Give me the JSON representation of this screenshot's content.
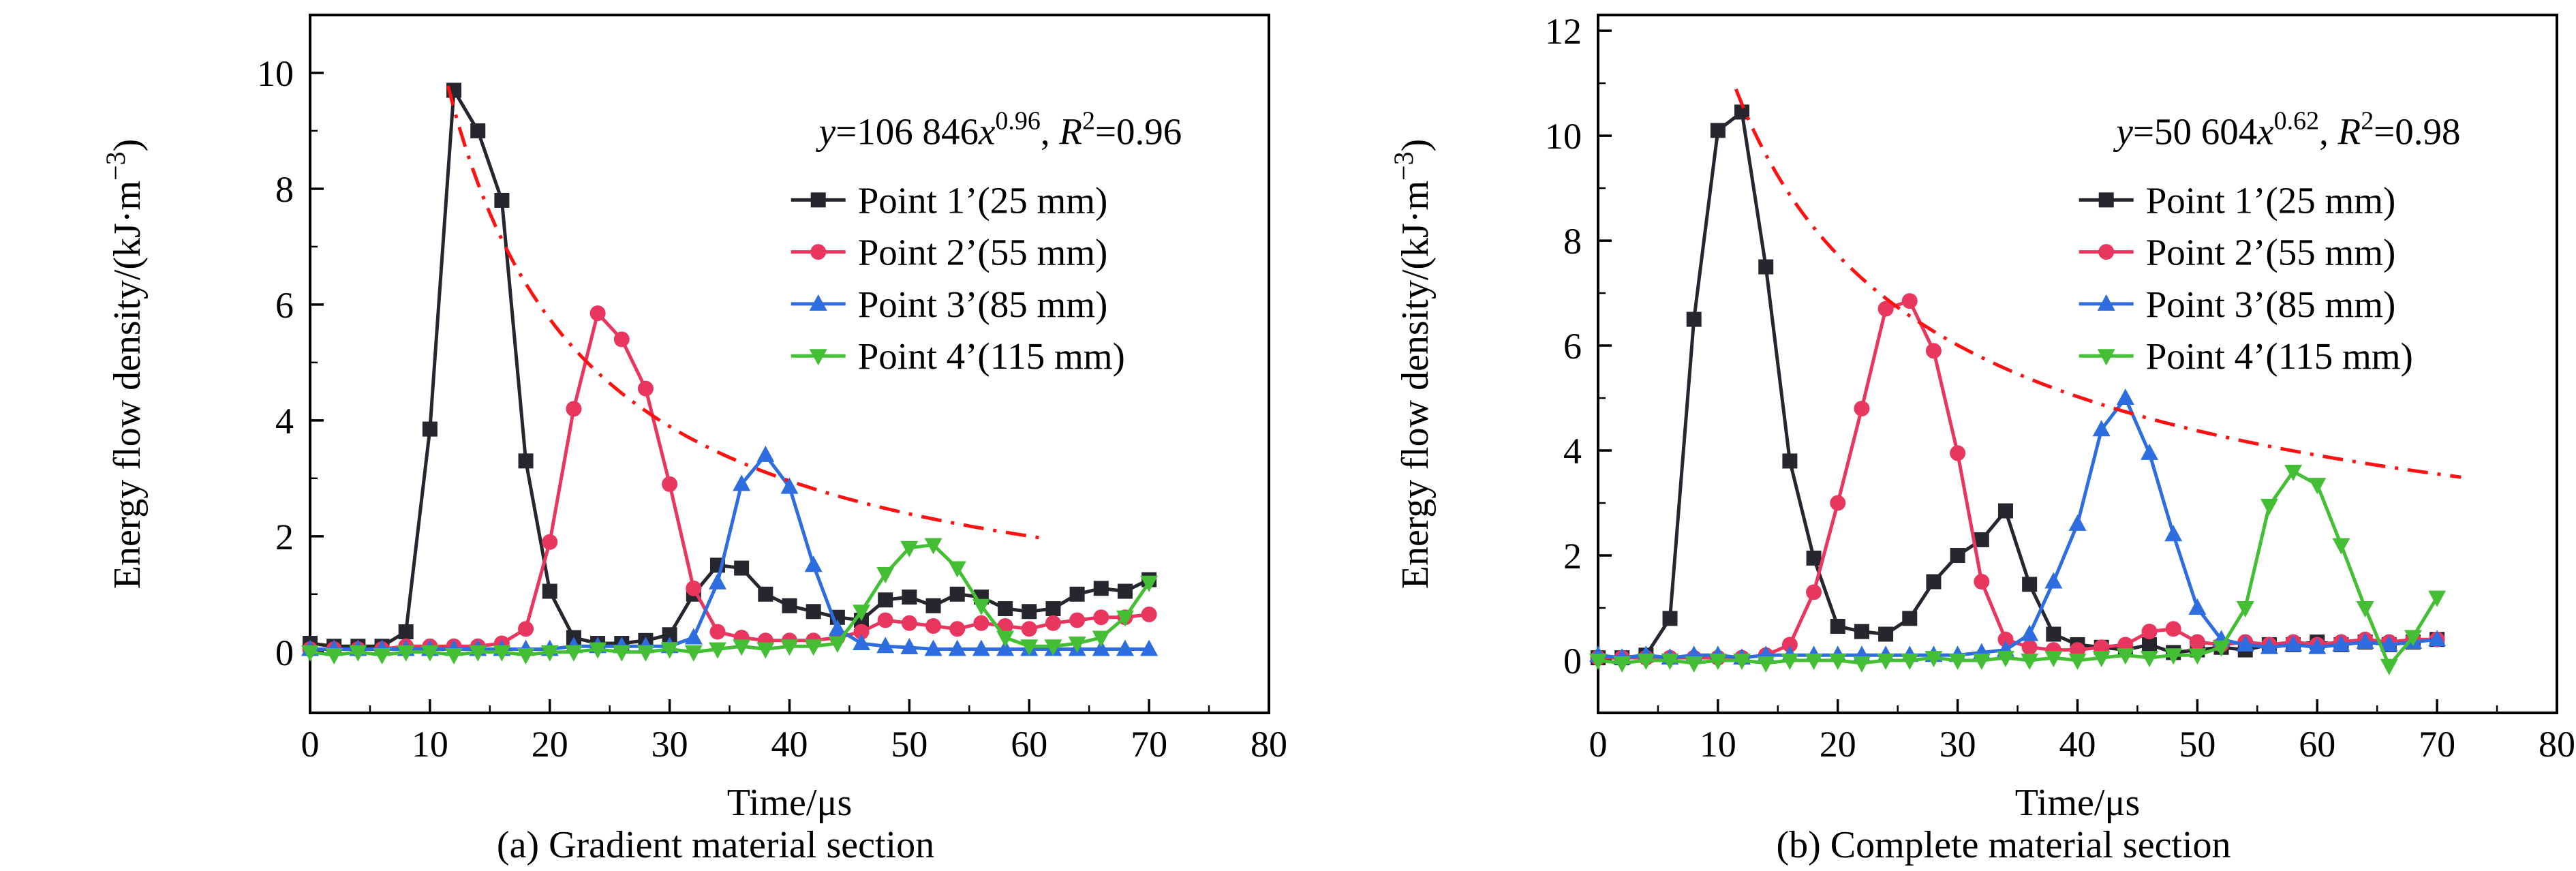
{
  "page": {
    "background": "#ffffff"
  },
  "chart_data": [
    {
      "type": "line",
      "caption": "(a) Gradient material section",
      "xlabel": "Time/μs",
      "ylabel_parts": [
        {
          "t": "Energy flow density/(kJ·m"
        },
        {
          "t": "−3",
          "sup": 1
        },
        {
          "t": ")"
        }
      ],
      "xlim": [
        0,
        80
      ],
      "ylim_draw": [
        -1.05,
        11.0
      ],
      "xticks": [
        0,
        10,
        20,
        30,
        40,
        50,
        60,
        70,
        80
      ],
      "yticks": [
        0,
        2,
        4,
        6,
        8,
        10
      ],
      "x_minor_step": 5,
      "y_minor_step": 1,
      "annotation_parts": [
        {
          "t": "y",
          "i": 1
        },
        {
          "t": "=106 846"
        },
        {
          "t": "x",
          "i": 1
        },
        {
          "t": "0.96",
          "sup": 1
        },
        {
          "t": ", "
        },
        {
          "t": "R",
          "i": 1
        },
        {
          "t": "2",
          "sup": 1
        },
        {
          "t": "=0.96"
        }
      ],
      "fit": {
        "A": 102,
        "exp": -0.96,
        "x0": 11.5,
        "x1": 61,
        "color": "#ff1111"
      },
      "series": [
        {
          "name": "Point 1’(25 mm)",
          "marker": "square",
          "color": "#26262e",
          "x": [
            0,
            2,
            4,
            6,
            8,
            10,
            12,
            14,
            16,
            18,
            20,
            22,
            24,
            26,
            28,
            30,
            32,
            34,
            36,
            38,
            40,
            42,
            44,
            46,
            48,
            50,
            52,
            54,
            56,
            58,
            60,
            62,
            64,
            66,
            68,
            70
          ],
          "y": [
            0.15,
            0.1,
            0.1,
            0.1,
            0.35,
            3.85,
            9.7,
            9.0,
            7.8,
            3.3,
            1.05,
            0.25,
            0.15,
            0.15,
            0.2,
            0.3,
            1.0,
            1.5,
            1.45,
            1.0,
            0.8,
            0.7,
            0.6,
            0.55,
            0.9,
            0.95,
            0.8,
            1.0,
            0.95,
            0.75,
            0.7,
            0.75,
            1.0,
            1.1,
            1.05,
            1.25
          ]
        },
        {
          "name": "Point 2’(55 mm)",
          "marker": "circle",
          "color": "#e8365f",
          "x": [
            0,
            2,
            4,
            6,
            8,
            10,
            12,
            14,
            16,
            18,
            20,
            22,
            24,
            26,
            28,
            30,
            32,
            34,
            36,
            38,
            40,
            42,
            44,
            46,
            48,
            50,
            52,
            54,
            56,
            58,
            60,
            62,
            64,
            66,
            68,
            70
          ],
          "y": [
            0.05,
            0.05,
            0.05,
            0.05,
            0.1,
            0.1,
            0.1,
            0.1,
            0.15,
            0.4,
            1.9,
            4.2,
            5.85,
            5.4,
            4.55,
            2.9,
            1.1,
            0.35,
            0.25,
            0.2,
            0.2,
            0.2,
            0.25,
            0.35,
            0.55,
            0.5,
            0.45,
            0.4,
            0.5,
            0.45,
            0.4,
            0.5,
            0.55,
            0.6,
            0.6,
            0.65
          ]
        },
        {
          "name": "Point 3’(85 mm)",
          "marker": "triangle-up",
          "color": "#2e6de0",
          "x": [
            0,
            2,
            4,
            6,
            8,
            10,
            12,
            14,
            16,
            18,
            20,
            22,
            24,
            26,
            28,
            30,
            32,
            34,
            36,
            38,
            40,
            42,
            44,
            46,
            48,
            50,
            52,
            54,
            56,
            58,
            60,
            62,
            64,
            66,
            68,
            70
          ],
          "y": [
            0.05,
            0.05,
            0.05,
            0.05,
            0.05,
            0.05,
            0.05,
            0.05,
            0.05,
            0.05,
            0.05,
            0.1,
            0.1,
            0.1,
            0.1,
            0.1,
            0.25,
            1.2,
            2.9,
            3.4,
            2.85,
            1.5,
            0.4,
            0.15,
            0.1,
            0.08,
            0.05,
            0.05,
            0.05,
            0.05,
            0.05,
            0.05,
            0.05,
            0.05,
            0.05,
            0.05
          ]
        },
        {
          "name": "Point 4’(115 mm)",
          "marker": "triangle-down",
          "color": "#44bf35",
          "x": [
            0,
            2,
            4,
            6,
            8,
            10,
            12,
            14,
            16,
            18,
            20,
            22,
            24,
            26,
            28,
            30,
            32,
            34,
            36,
            38,
            40,
            42,
            44,
            46,
            48,
            50,
            52,
            54,
            56,
            58,
            60,
            62,
            64,
            66,
            68,
            70
          ],
          "y": [
            0.0,
            -0.05,
            0.0,
            -0.05,
            0.0,
            0.0,
            -0.05,
            0.0,
            0.0,
            -0.05,
            0.0,
            0.0,
            0.05,
            0.0,
            0.0,
            0.05,
            0.0,
            0.05,
            0.1,
            0.05,
            0.1,
            0.1,
            0.15,
            0.7,
            1.35,
            1.8,
            1.85,
            1.45,
            0.8,
            0.25,
            0.1,
            0.1,
            0.15,
            0.25,
            0.6,
            1.2
          ]
        }
      ]
    },
    {
      "type": "line",
      "caption": "(b) Complete material section",
      "xlabel": "Time/μs",
      "ylabel_parts": [
        {
          "t": "Energy flow density/(kJ·m"
        },
        {
          "t": "−3",
          "sup": 1
        },
        {
          "t": ")"
        }
      ],
      "xlim": [
        0,
        80
      ],
      "ylim_draw": [
        -1.0,
        12.3
      ],
      "xticks": [
        0,
        10,
        20,
        30,
        40,
        50,
        60,
        70,
        80
      ],
      "yticks": [
        0,
        2,
        4,
        6,
        8,
        10,
        12
      ],
      "x_minor_step": 5,
      "y_minor_step": 1,
      "annotation_parts": [
        {
          "t": "y",
          "i": 1
        },
        {
          "t": "=50 604"
        },
        {
          "t": "x",
          "i": 1
        },
        {
          "t": "0.62",
          "sup": 1
        },
        {
          "t": ", "
        },
        {
          "t": "R",
          "i": 1
        },
        {
          "t": "2",
          "sup": 1
        },
        {
          "t": "=0.98"
        }
      ],
      "fit": {
        "A": 49.5,
        "exp": -0.62,
        "x0": 11.5,
        "x1": 72,
        "color": "#ff1111"
      },
      "series": [
        {
          "name": "Point 1’(25 mm)",
          "marker": "square",
          "color": "#26262e",
          "x": [
            0,
            2,
            4,
            6,
            8,
            10,
            12,
            14,
            16,
            18,
            20,
            22,
            24,
            26,
            28,
            30,
            32,
            34,
            36,
            38,
            40,
            42,
            44,
            46,
            48,
            50,
            52,
            54,
            56,
            58,
            60,
            62,
            64,
            66,
            68,
            70
          ],
          "y": [
            0.05,
            0.05,
            0.1,
            0.8,
            6.5,
            10.1,
            10.45,
            7.5,
            3.8,
            1.95,
            0.65,
            0.55,
            0.5,
            0.8,
            1.5,
            2.0,
            2.3,
            2.85,
            1.45,
            0.5,
            0.3,
            0.25,
            0.2,
            0.3,
            0.15,
            0.2,
            0.25,
            0.2,
            0.3,
            0.3,
            0.35,
            0.3,
            0.35,
            0.3,
            0.35,
            0.4
          ]
        },
        {
          "name": "Point 2’(55 mm)",
          "marker": "circle",
          "color": "#e8365f",
          "x": [
            0,
            2,
            4,
            6,
            8,
            10,
            12,
            14,
            16,
            18,
            20,
            22,
            24,
            26,
            28,
            30,
            32,
            34,
            36,
            38,
            40,
            42,
            44,
            46,
            48,
            50,
            52,
            54,
            56,
            58,
            60,
            62,
            64,
            66,
            68,
            70
          ],
          "y": [
            0.05,
            0.05,
            0.05,
            0.05,
            0.05,
            0.05,
            0.05,
            0.1,
            0.3,
            1.3,
            3.0,
            4.8,
            6.7,
            6.85,
            5.9,
            3.95,
            1.5,
            0.4,
            0.25,
            0.2,
            0.2,
            0.25,
            0.3,
            0.55,
            0.6,
            0.35,
            0.3,
            0.35,
            0.3,
            0.35,
            0.3,
            0.35,
            0.4,
            0.35,
            0.4,
            0.4
          ]
        },
        {
          "name": "Point 3’(85 mm)",
          "marker": "triangle-up",
          "color": "#2e6de0",
          "x": [
            0,
            2,
            4,
            6,
            8,
            10,
            12,
            14,
            16,
            18,
            20,
            22,
            24,
            26,
            28,
            30,
            32,
            34,
            36,
            38,
            40,
            42,
            44,
            46,
            48,
            50,
            52,
            54,
            56,
            58,
            60,
            62,
            64,
            66,
            68,
            70
          ],
          "y": [
            0.1,
            0.05,
            0.1,
            0.05,
            0.1,
            0.1,
            0.05,
            0.1,
            0.1,
            0.1,
            0.1,
            0.1,
            0.1,
            0.1,
            0.1,
            0.1,
            0.15,
            0.2,
            0.5,
            1.5,
            2.6,
            4.4,
            5.0,
            3.95,
            2.4,
            1.0,
            0.4,
            0.3,
            0.25,
            0.3,
            0.25,
            0.3,
            0.35,
            0.3,
            0.35,
            0.4
          ]
        },
        {
          "name": "Point 4’(115 mm)",
          "marker": "triangle-down",
          "color": "#44bf35",
          "x": [
            0,
            2,
            4,
            6,
            8,
            10,
            12,
            14,
            16,
            18,
            20,
            22,
            24,
            26,
            28,
            30,
            32,
            34,
            36,
            38,
            40,
            42,
            44,
            46,
            48,
            50,
            52,
            54,
            56,
            58,
            60,
            62,
            64,
            66,
            68,
            70
          ],
          "y": [
            0.0,
            -0.05,
            0.0,
            0.0,
            -0.05,
            0.0,
            0.0,
            -0.05,
            0.0,
            0.0,
            0.0,
            -0.05,
            0.0,
            0.0,
            0.05,
            0.0,
            0.0,
            0.05,
            0.0,
            0.05,
            0.0,
            0.05,
            0.1,
            0.05,
            0.1,
            0.1,
            0.25,
            1.0,
            2.95,
            3.6,
            3.35,
            2.2,
            1.0,
            -0.1,
            0.45,
            1.2
          ]
        }
      ]
    }
  ]
}
